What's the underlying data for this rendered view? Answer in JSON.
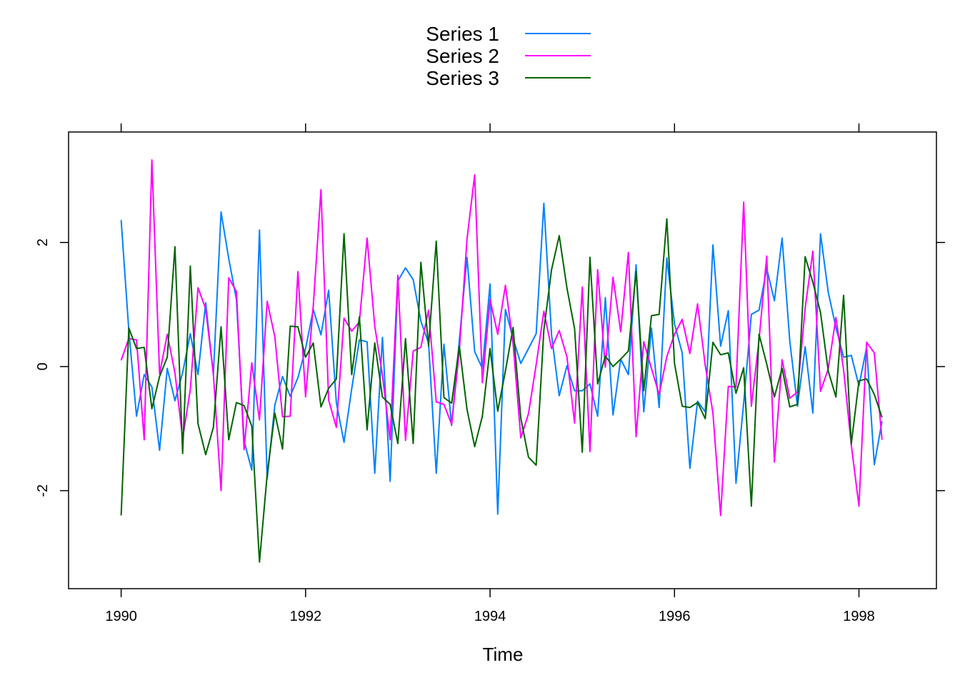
{
  "chart_data": {
    "type": "line",
    "xlabel": "Time",
    "ylabel": "",
    "title": "",
    "xlim": [
      1989.43,
      1998.84
    ],
    "ylim": [
      -3.58,
      3.78
    ],
    "x_start": 1990,
    "frequency": 12,
    "x_ticks": [
      1990,
      1992,
      1994,
      1996,
      1998
    ],
    "x_tick_labels": [
      "1990",
      "1992",
      "1994",
      "1996",
      "1998"
    ],
    "y_ticks": [
      -2,
      0,
      2
    ],
    "y_tick_labels": [
      "-2",
      "0",
      "2"
    ],
    "grid": false,
    "legend_position": "top",
    "series": [
      {
        "name": "Series 1",
        "color": "#0080ff",
        "values": [
          2.36,
          0.58,
          -0.8,
          -0.13,
          -0.33,
          -1.35,
          -0.03,
          -0.55,
          -0.1,
          0.53,
          -0.13,
          1.03,
          -0.13,
          2.49,
          1.74,
          1.08,
          -1.2,
          -1.67,
          2.2,
          -1.81,
          -0.62,
          -0.16,
          -0.48,
          -0.18,
          0.29,
          0.92,
          0.51,
          1.23,
          -0.58,
          -1.22,
          -0.36,
          0.43,
          0.4,
          -1.72,
          0.47,
          -1.85,
          1.38,
          1.59,
          1.4,
          0.73,
          0.38,
          -1.72,
          0.36,
          -0.95,
          0.42,
          1.76,
          0.24,
          -0.03,
          1.33,
          -2.38,
          0.92,
          0.45,
          0.05,
          0.29,
          0.53,
          2.63,
          0.51,
          -0.47,
          0.01,
          -0.39,
          -0.39,
          -0.28,
          -0.8,
          1.11,
          -0.78,
          0.12,
          -0.13,
          1.64,
          -0.73,
          0.62,
          -0.66,
          1.75,
          0.69,
          0.22,
          -1.64,
          -0.56,
          -0.73,
          1.96,
          0.33,
          0.9,
          -1.88,
          -0.59,
          0.84,
          0.91,
          1.58,
          1.06,
          2.07,
          0.41,
          -0.64,
          0.32,
          -0.75,
          2.14,
          1.2,
          0.63,
          0.15,
          0.18,
          -0.31,
          0.31,
          -1.58,
          -0.88
        ]
      },
      {
        "name": "Series 2",
        "color": "#ff00ff",
        "values": [
          0.1,
          0.45,
          0.43,
          -1.18,
          3.33,
          -0.12,
          0.52,
          -0.1,
          -1.16,
          -0.37,
          1.27,
          0.93,
          -0.12,
          -2.0,
          1.43,
          1.21,
          -1.34,
          0.06,
          -0.86,
          1.05,
          0.48,
          -0.81,
          -0.8,
          1.53,
          -0.49,
          0.98,
          2.85,
          -0.54,
          -0.98,
          0.78,
          0.57,
          0.72,
          2.07,
          0.65,
          -0.14,
          -1.18,
          1.47,
          -1.19,
          0.25,
          0.31,
          0.91,
          -0.57,
          -0.61,
          -0.93,
          0.25,
          2.05,
          3.09,
          -0.26,
          1.08,
          0.52,
          1.31,
          0.37,
          -1.15,
          -0.76,
          0.03,
          0.89,
          0.29,
          0.58,
          0.16,
          -0.91,
          1.28,
          -1.37,
          1.56,
          -0.01,
          1.44,
          0.56,
          1.84,
          -1.13,
          0.4,
          -0.03,
          -0.45,
          0.16,
          0.52,
          0.76,
          0.21,
          1.01,
          0.02,
          -0.75,
          -2.4,
          -0.32,
          -0.33,
          2.65,
          -0.64,
          0.43,
          1.78,
          -1.54,
          0.11,
          -0.51,
          -0.41,
          0.94,
          1.86,
          -0.4,
          -0.04,
          0.79,
          -0.05,
          -1.26,
          -2.25,
          0.39,
          0.22,
          -1.18
        ]
      },
      {
        "name": "Series 3",
        "color": "#006400",
        "values": [
          -2.4,
          0.62,
          0.29,
          0.31,
          -0.68,
          -0.16,
          0.15,
          1.93,
          -1.4,
          1.62,
          -0.92,
          -1.42,
          -0.98,
          0.64,
          -1.18,
          -0.58,
          -0.63,
          -0.96,
          -3.15,
          -1.74,
          -0.75,
          -1.33,
          0.65,
          0.64,
          0.15,
          0.38,
          -0.65,
          -0.35,
          -0.2,
          2.14,
          -0.13,
          0.8,
          -1.02,
          0.38,
          -0.49,
          -0.61,
          -1.24,
          0.45,
          -1.24,
          1.68,
          0.33,
          2.02,
          -0.5,
          -0.59,
          0.33,
          -0.69,
          -1.29,
          -0.8,
          0.29,
          -0.72,
          -0.07,
          0.63,
          -0.83,
          -1.46,
          -1.59,
          0.59,
          1.56,
          2.11,
          1.27,
          0.61,
          -1.38,
          1.76,
          -0.28,
          0.17,
          0.0,
          0.12,
          0.25,
          1.53,
          -0.39,
          0.82,
          0.84,
          2.38,
          0.05,
          -0.64,
          -0.66,
          -0.58,
          -0.84,
          0.39,
          0.19,
          0.22,
          -0.43,
          -0.02,
          -2.25,
          0.52,
          0.04,
          -0.49,
          -0.03,
          -0.65,
          -0.61,
          1.77,
          1.36,
          0.87,
          -0.07,
          -0.49,
          1.15,
          -1.25,
          -0.23,
          -0.2,
          -0.45,
          -0.82
        ]
      }
    ]
  }
}
